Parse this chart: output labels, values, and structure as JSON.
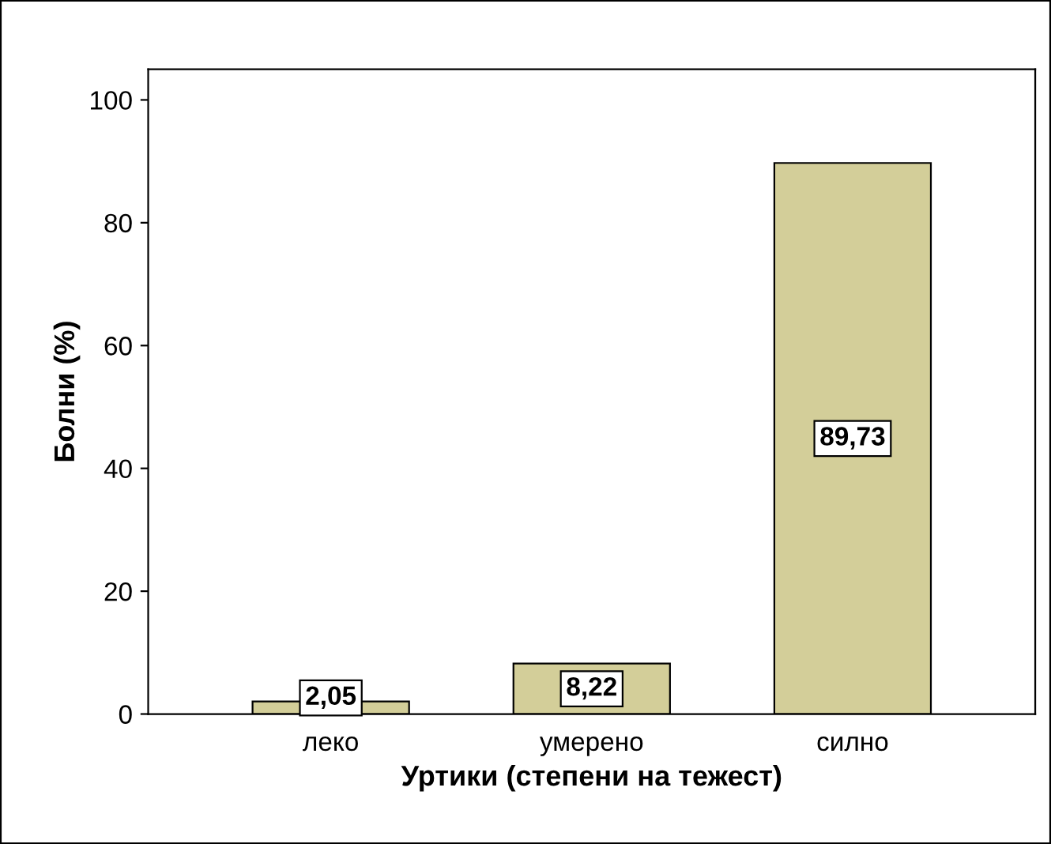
{
  "chart_data": {
    "type": "bar",
    "xlabel": "Уртики (степени на тежест)",
    "ylabel": "Болни (%)",
    "categories": [
      "леко",
      "умерено",
      "силно"
    ],
    "values": [
      2.05,
      8.22,
      89.73
    ],
    "value_labels": [
      "2,05",
      "8,22",
      "89,73"
    ],
    "color": "#d3ce99",
    "ylim": [
      0,
      105
    ],
    "yticks": [
      0,
      20,
      40,
      60,
      80,
      100
    ],
    "grid": false,
    "legend": false
  }
}
